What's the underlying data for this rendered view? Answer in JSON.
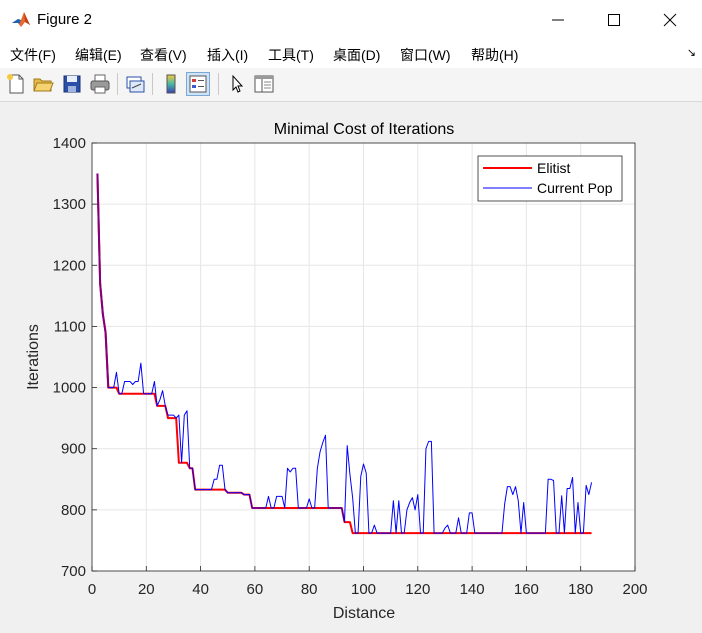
{
  "window": {
    "title": "Figure 2"
  },
  "menu": {
    "items": [
      "文件(F)",
      "编辑(E)",
      "查看(V)",
      "插入(I)",
      "工具(T)",
      "桌面(D)",
      "窗口(W)",
      "帮助(H)"
    ]
  },
  "toolbar": {
    "buttons": [
      {
        "icon": "new-file-icon"
      },
      {
        "icon": "open-folder-icon"
      },
      {
        "icon": "save-icon"
      },
      {
        "icon": "print-icon"
      },
      {
        "icon": "link-figure-icon"
      },
      {
        "icon": "colorbar-icon"
      },
      {
        "icon": "legend-icon"
      },
      {
        "icon": "pointer-icon"
      },
      {
        "icon": "property-inspector-icon"
      }
    ]
  },
  "colors": {
    "elitist": "#ff0000",
    "current_pop": "#0000ff",
    "overlap": "#7f007f"
  },
  "chart_data": {
    "type": "line",
    "title": "Minimal Cost of Iterations",
    "xlabel": "Distance",
    "ylabel": "Iterations",
    "xlim": [
      0,
      200
    ],
    "ylim": [
      700,
      1400
    ],
    "xticks": [
      0,
      20,
      40,
      60,
      80,
      100,
      120,
      140,
      160,
      180,
      200
    ],
    "yticks": [
      700,
      800,
      900,
      1000,
      1100,
      1200,
      1300,
      1400
    ],
    "grid": true,
    "legend_position": "top-right",
    "series": [
      {
        "name": "Elitist",
        "color": "#ff0000",
        "points": [
          [
            2,
            1350
          ],
          [
            3,
            1170
          ],
          [
            4,
            1120
          ],
          [
            5,
            1090
          ],
          [
            6,
            1000
          ],
          [
            9,
            1000
          ],
          [
            10,
            990
          ],
          [
            23,
            990
          ],
          [
            24,
            970
          ],
          [
            27,
            970
          ],
          [
            28,
            950
          ],
          [
            31,
            950
          ],
          [
            32,
            877
          ],
          [
            35,
            877
          ],
          [
            36,
            868
          ],
          [
            37,
            868
          ],
          [
            38,
            833
          ],
          [
            49,
            833
          ],
          [
            50,
            828
          ],
          [
            55,
            828
          ],
          [
            56,
            825
          ],
          [
            58,
            825
          ],
          [
            59,
            803
          ],
          [
            92,
            803
          ],
          [
            93,
            780
          ],
          [
            95,
            780
          ],
          [
            96,
            762
          ],
          [
            184,
            762
          ]
        ]
      },
      {
        "name": "Current Pop",
        "color": "#0000ff",
        "points": [
          [
            2,
            1350
          ],
          [
            3,
            1170
          ],
          [
            4,
            1120
          ],
          [
            5,
            1090
          ],
          [
            6,
            1000
          ],
          [
            7,
            1000
          ],
          [
            8,
            1000
          ],
          [
            9,
            1025
          ],
          [
            10,
            990
          ],
          [
            11,
            990
          ],
          [
            12,
            1010
          ],
          [
            13,
            1010
          ],
          [
            14,
            1010
          ],
          [
            15,
            1005
          ],
          [
            16,
            1010
          ],
          [
            17,
            1010
          ],
          [
            18,
            1040
          ],
          [
            19,
            990
          ],
          [
            20,
            990
          ],
          [
            21,
            990
          ],
          [
            22,
            990
          ],
          [
            23,
            1010
          ],
          [
            24,
            970
          ],
          [
            25,
            980
          ],
          [
            26,
            995
          ],
          [
            27,
            970
          ],
          [
            28,
            955
          ],
          [
            29,
            955
          ],
          [
            30,
            955
          ],
          [
            31,
            950
          ],
          [
            32,
            955
          ],
          [
            33,
            877
          ],
          [
            34,
            955
          ],
          [
            35,
            962
          ],
          [
            36,
            868
          ],
          [
            37,
            868
          ],
          [
            38,
            833
          ],
          [
            39,
            833
          ],
          [
            40,
            833
          ],
          [
            41,
            833
          ],
          [
            42,
            833
          ],
          [
            43,
            833
          ],
          [
            44,
            833
          ],
          [
            45,
            850
          ],
          [
            46,
            850
          ],
          [
            47,
            873
          ],
          [
            48,
            873
          ],
          [
            49,
            833
          ],
          [
            50,
            828
          ],
          [
            51,
            828
          ],
          [
            52,
            828
          ],
          [
            53,
            828
          ],
          [
            54,
            828
          ],
          [
            55,
            828
          ],
          [
            56,
            825
          ],
          [
            57,
            825
          ],
          [
            58,
            825
          ],
          [
            59,
            803
          ],
          [
            60,
            803
          ],
          [
            61,
            803
          ],
          [
            62,
            803
          ],
          [
            63,
            803
          ],
          [
            64,
            803
          ],
          [
            65,
            822
          ],
          [
            66,
            803
          ],
          [
            67,
            803
          ],
          [
            68,
            822
          ],
          [
            69,
            822
          ],
          [
            70,
            822
          ],
          [
            71,
            803
          ],
          [
            72,
            868
          ],
          [
            73,
            862
          ],
          [
            74,
            868
          ],
          [
            75,
            868
          ],
          [
            76,
            803
          ],
          [
            77,
            803
          ],
          [
            78,
            803
          ],
          [
            79,
            803
          ],
          [
            80,
            818
          ],
          [
            81,
            803
          ],
          [
            82,
            803
          ],
          [
            83,
            868
          ],
          [
            84,
            895
          ],
          [
            85,
            910
          ],
          [
            86,
            922
          ],
          [
            87,
            803
          ],
          [
            88,
            803
          ],
          [
            89,
            803
          ],
          [
            90,
            803
          ],
          [
            91,
            803
          ],
          [
            92,
            803
          ],
          [
            93,
            780
          ],
          [
            94,
            905
          ],
          [
            95,
            858
          ],
          [
            96,
            820
          ],
          [
            97,
            762
          ],
          [
            98,
            762
          ],
          [
            99,
            855
          ],
          [
            100,
            875
          ],
          [
            101,
            860
          ],
          [
            102,
            762
          ],
          [
            103,
            762
          ],
          [
            104,
            775
          ],
          [
            105,
            762
          ],
          [
            106,
            762
          ],
          [
            107,
            762
          ],
          [
            108,
            762
          ],
          [
            109,
            762
          ],
          [
            110,
            762
          ],
          [
            111,
            815
          ],
          [
            112,
            762
          ],
          [
            113,
            815
          ],
          [
            114,
            762
          ],
          [
            115,
            762
          ],
          [
            116,
            800
          ],
          [
            117,
            812
          ],
          [
            118,
            820
          ],
          [
            119,
            800
          ],
          [
            120,
            825
          ],
          [
            121,
            762
          ],
          [
            122,
            762
          ],
          [
            123,
            900
          ],
          [
            124,
            912
          ],
          [
            125,
            912
          ],
          [
            126,
            762
          ],
          [
            127,
            762
          ],
          [
            128,
            762
          ],
          [
            129,
            762
          ],
          [
            130,
            770
          ],
          [
            131,
            775
          ],
          [
            132,
            762
          ],
          [
            133,
            762
          ],
          [
            134,
            762
          ],
          [
            135,
            787
          ],
          [
            136,
            762
          ],
          [
            137,
            762
          ],
          [
            138,
            762
          ],
          [
            139,
            795
          ],
          [
            140,
            795
          ],
          [
            141,
            762
          ],
          [
            142,
            762
          ],
          [
            143,
            762
          ],
          [
            144,
            762
          ],
          [
            145,
            762
          ],
          [
            146,
            762
          ],
          [
            147,
            762
          ],
          [
            148,
            762
          ],
          [
            149,
            762
          ],
          [
            150,
            762
          ],
          [
            151,
            762
          ],
          [
            152,
            810
          ],
          [
            153,
            838
          ],
          [
            154,
            838
          ],
          [
            155,
            825
          ],
          [
            156,
            838
          ],
          [
            157,
            815
          ],
          [
            158,
            762
          ],
          [
            159,
            812
          ],
          [
            160,
            762
          ],
          [
            161,
            762
          ],
          [
            162,
            762
          ],
          [
            163,
            762
          ],
          [
            164,
            762
          ],
          [
            165,
            762
          ],
          [
            166,
            762
          ],
          [
            167,
            762
          ],
          [
            168,
            850
          ],
          [
            169,
            850
          ],
          [
            170,
            848
          ],
          [
            171,
            762
          ],
          [
            172,
            762
          ],
          [
            173,
            823
          ],
          [
            174,
            762
          ],
          [
            175,
            835
          ],
          [
            176,
            835
          ],
          [
            177,
            853
          ],
          [
            178,
            762
          ],
          [
            179,
            812
          ],
          [
            180,
            762
          ],
          [
            181,
            762
          ],
          [
            182,
            840
          ],
          [
            183,
            825
          ],
          [
            184,
            845
          ]
        ]
      }
    ]
  }
}
